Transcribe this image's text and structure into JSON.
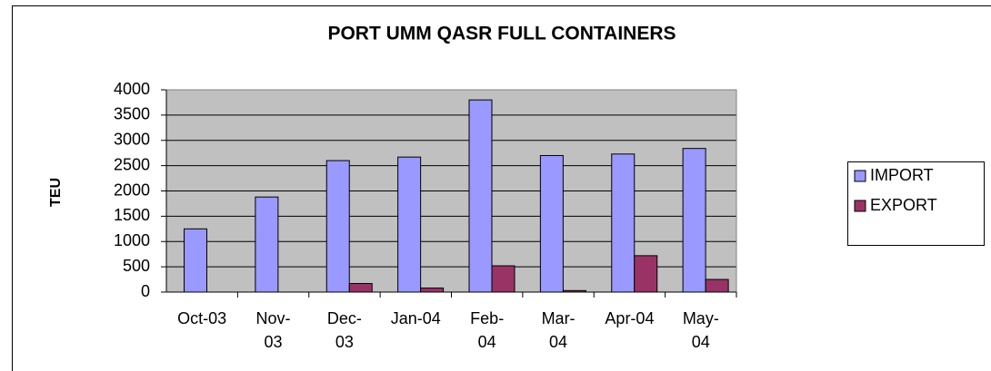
{
  "chart_data": {
    "type": "bar",
    "title": "PORT UMM QASR FULL CONTAINERS",
    "y_label": "TEU",
    "categories": [
      "Oct-03",
      "Nov-03",
      "Dec-03",
      "Jan-04",
      "Feb-04",
      "Mar-04",
      "Apr-04",
      "May-04"
    ],
    "series": [
      {
        "name": "IMPORT",
        "color": "#9999ff",
        "values": [
          1250,
          1880,
          2600,
          2670,
          3800,
          2700,
          2730,
          2840
        ]
      },
      {
        "name": "EXPORT",
        "color": "#993366",
        "values": [
          0,
          0,
          170,
          80,
          520,
          30,
          720,
          250
        ]
      }
    ],
    "ylim": [
      0,
      4000
    ],
    "yticks": [
      0,
      500,
      1000,
      1500,
      2000,
      2500,
      3000,
      3500,
      4000
    ],
    "grid": true,
    "legend": "right"
  }
}
